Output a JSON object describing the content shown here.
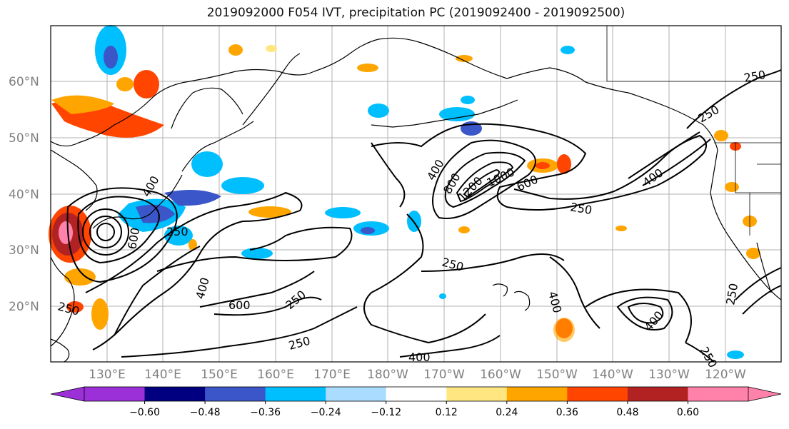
{
  "title": "2019092000 F054 IVT, precipitation PC (2019092400 - 2019092500)",
  "lat_labels": [
    "60°N",
    "50°N",
    "40°N",
    "30°N",
    "20°N"
  ],
  "lon_labels": [
    "130°E",
    "140°E",
    "150°E",
    "160°E",
    "170°E",
    "180°W",
    "170°W",
    "160°W",
    "150°W",
    "140°W",
    "130°W",
    "120°W"
  ],
  "contour_labels": [
    "250",
    "400",
    "600",
    "800",
    "1000",
    "1200",
    "250",
    "250",
    "400",
    "600",
    "250",
    "250",
    "400",
    "250",
    "400",
    "400",
    "250",
    "400",
    "250",
    "250",
    "250"
  ],
  "colorbar": {
    "ticks": [
      "−0.60",
      "−0.48",
      "−0.36",
      "−0.24",
      "−0.12",
      "0.12",
      "0.24",
      "0.36",
      "0.48",
      "0.60"
    ],
    "colors": [
      "#9b30d9",
      "#000080",
      "#3a56c8",
      "#00bfff",
      "#aadcff",
      "#ffffff",
      "#ffe680",
      "#ffa500",
      "#ff4500",
      "#b22222",
      "#ff82ab"
    ],
    "under_color": "#9b30d9",
    "over_color": "#ff82ab"
  },
  "colors": {
    "contour": "#000000",
    "grid": "#b0b0b0",
    "coast": "#000000"
  }
}
